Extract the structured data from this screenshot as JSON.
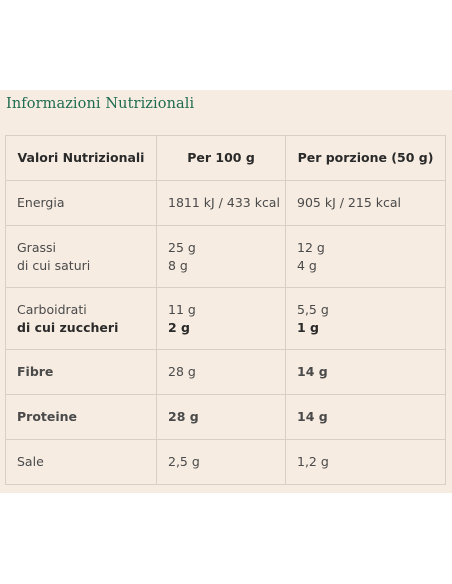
{
  "title": "Informazioni Nutrizionali",
  "colors": {
    "panel_bg": "#f6ece2",
    "title": "#1f6b4f",
    "border": "#d9cfc6"
  },
  "table": {
    "headers": [
      "Valori Nutrizionali",
      "Per 100 g",
      "Per porzione (50 g)"
    ],
    "rows": {
      "energia": {
        "label": "Energia",
        "per100": "1811 kJ / 433 kcal",
        "portion": "905 kJ / 215 kcal"
      },
      "grassi": {
        "label": "Grassi",
        "sublabel": "di cui saturi",
        "per100": "25 g",
        "per100_sub": "8 g",
        "portion": "12 g",
        "portion_sub": "4 g"
      },
      "carboidrati": {
        "label": "Carboidrati",
        "sublabel": "di cui zuccheri",
        "per100": "11 g",
        "per100_sub": "2 g",
        "portion": "5,5 g",
        "portion_sub": "1 g"
      },
      "fibre": {
        "label": "Fibre",
        "per100": "28 g",
        "portion": "14 g"
      },
      "proteine": {
        "label": "Proteine",
        "per100": "28 g",
        "portion": "14 g"
      },
      "sale": {
        "label": "Sale",
        "per100": "2,5 g",
        "portion": "1,2 g"
      }
    }
  }
}
